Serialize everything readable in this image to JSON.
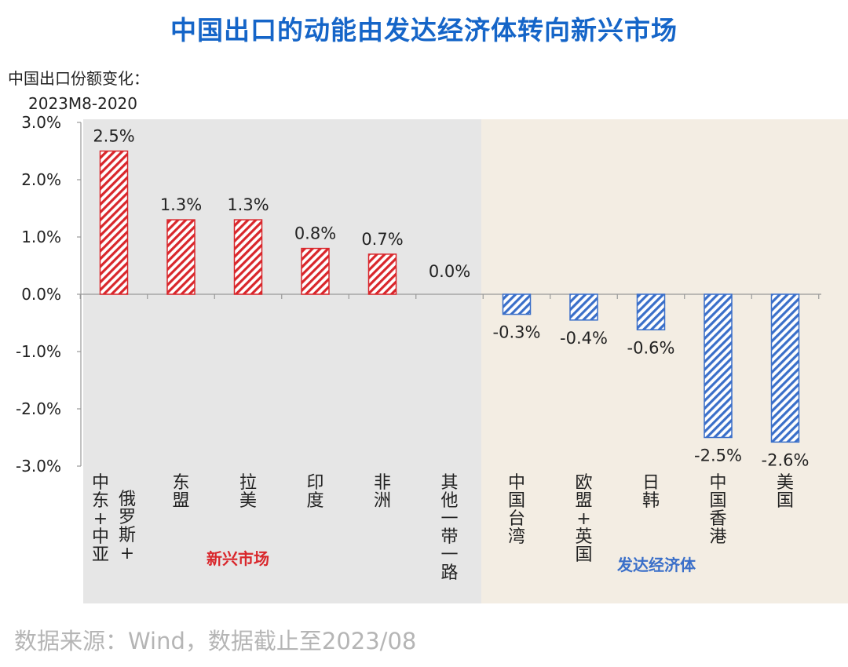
{
  "chart_data": {
    "type": "bar",
    "title": "中国出口的动能由发达经济体转向新兴市场",
    "ylabel_lines": [
      "中国出口份额变化：",
      "2023M8-2020"
    ],
    "yticks": [
      "3.0%",
      "2.0%",
      "1.0%",
      "0.0%",
      "-1.0%",
      "-2.0%",
      "-3.0%"
    ],
    "ylim": [
      -3.0,
      3.0
    ],
    "categories": [
      {
        "label_columns": [
          "中东+中亚",
          "俄罗斯+"
        ],
        "value": 2.5,
        "value_label": "2.5%",
        "group": "emerging"
      },
      {
        "label_columns": [
          "东盟"
        ],
        "value": 1.3,
        "value_label": "1.3%",
        "group": "emerging"
      },
      {
        "label_columns": [
          "拉美"
        ],
        "value": 1.3,
        "value_label": "1.3%",
        "group": "emerging"
      },
      {
        "label_columns": [
          "印度"
        ],
        "value": 0.8,
        "value_label": "0.8%",
        "group": "emerging"
      },
      {
        "label_columns": [
          "非洲"
        ],
        "value": 0.7,
        "value_label": "0.7%",
        "group": "emerging"
      },
      {
        "label_columns": [
          "其他一带一路"
        ],
        "value": 0.0,
        "value_label": "0.0%",
        "group": "emerging"
      },
      {
        "label_columns": [
          "中国台湾"
        ],
        "value": -0.35,
        "value_label": "-0.3%",
        "group": "developed"
      },
      {
        "label_columns": [
          "欧盟+英国"
        ],
        "value": -0.45,
        "value_label": "-0.4%",
        "group": "developed"
      },
      {
        "label_columns": [
          "日韩"
        ],
        "value": -0.62,
        "value_label": "-0.6%",
        "group": "developed"
      },
      {
        "label_columns": [
          "中国香港"
        ],
        "value": -2.5,
        "value_label": "-2.5%",
        "group": "developed"
      },
      {
        "label_columns": [
          "美国"
        ],
        "value": -2.58,
        "value_label": "-2.6%",
        "group": "developed"
      }
    ],
    "groups": {
      "emerging": {
        "label": "新兴市场",
        "color": "#d9262b",
        "background": "#e6e6e6"
      },
      "developed": {
        "label": "发达经济体",
        "color": "#3a6fc9",
        "background": "#f3ede3"
      }
    }
  },
  "source": "数据来源：Wind，数据截止至2023/08"
}
